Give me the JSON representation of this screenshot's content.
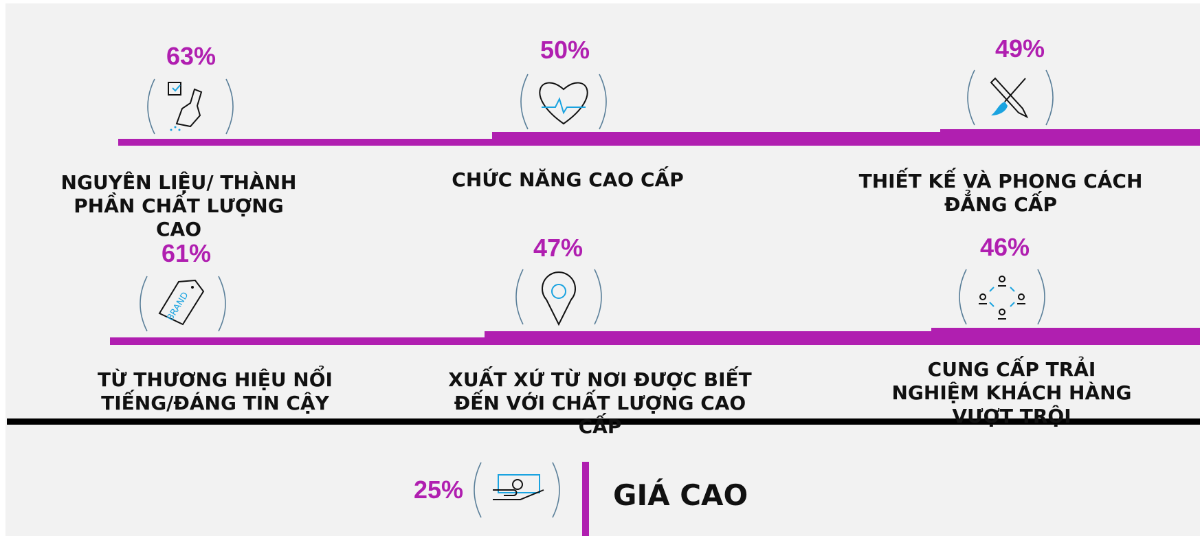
{
  "items": [
    {
      "value": "63%",
      "label": [
        "NGUYÊN LIỆU/ THÀNH",
        "PHẦN CHẤT LƯỢNG",
        "CAO"
      ]
    },
    {
      "value": "50%",
      "label": [
        "CHỨC NĂNG CAO CẤP"
      ]
    },
    {
      "value": "49%",
      "label": [
        "THIẾT KẾ VÀ PHONG CÁCH",
        "ĐẲNG CẤP"
      ]
    },
    {
      "value": "61%",
      "label": [
        "TỪ THƯƠNG HIỆU NỔI",
        "TIẾNG/ĐÁNG TIN CẬY"
      ]
    },
    {
      "value": "47%",
      "label": [
        "XUẤT XỨ TỪ NƠI ĐƯỢC BIẾT",
        "ĐẾN VỚI CHẤT LƯỢNG CAO",
        "CẤP"
      ]
    },
    {
      "value": "46%",
      "label": [
        "CUNG CẤP TRẢI",
        "NGHIỆM KHÁCH HÀNG",
        "VƯỢT TRỘI"
      ]
    }
  ],
  "bottom": {
    "value": "25%",
    "label": "GIÁ CAO"
  }
}
